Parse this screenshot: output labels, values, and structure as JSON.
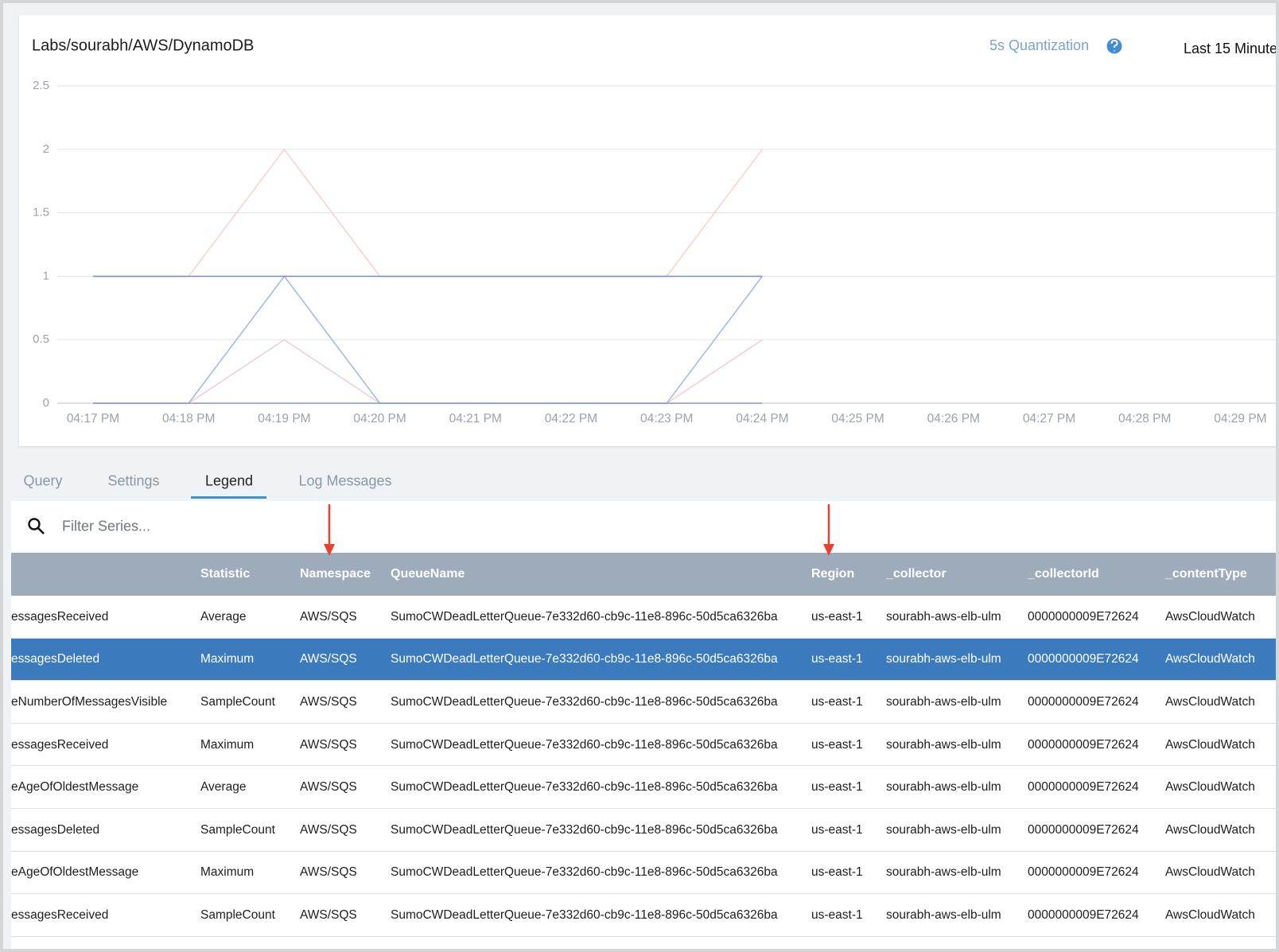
{
  "header": {
    "quantization": "5s Quantization",
    "time_range": "Last 15 Minute"
  },
  "chart_data": {
    "type": "line",
    "title": "Labs/sourabh/AWS/DynamoDB",
    "categories": [
      "04:17 PM",
      "04:18 PM",
      "04:19 PM",
      "04:20 PM",
      "04:21 PM",
      "04:22 PM",
      "04:23 PM",
      "04:24 PM",
      "04:25 PM",
      "04:26 PM",
      "04:27 PM",
      "04:28 PM",
      "04:29 PM"
    ],
    "series": [
      {
        "color": "#f6d3cf",
        "values": [
          1,
          1,
          2,
          1,
          1,
          1,
          1,
          2,
          null,
          null,
          null,
          null,
          null
        ]
      },
      {
        "color": "#eccfe0",
        "values": [
          0,
          0,
          0.5,
          0,
          0,
          0,
          0,
          0.5,
          null,
          null,
          null,
          null,
          null
        ]
      },
      {
        "color": "#a7b9e4",
        "values": [
          0,
          0,
          1,
          0,
          0,
          0,
          0,
          1,
          null,
          null,
          null,
          null,
          null
        ]
      },
      {
        "color": "#7f93c8",
        "values": [
          1,
          1,
          1,
          1,
          1,
          1,
          1,
          1,
          null,
          null,
          null,
          null,
          null
        ]
      },
      {
        "color": "#8d97c6",
        "values": [
          0,
          0,
          0,
          0,
          0,
          0,
          0,
          0,
          null,
          null,
          null,
          null,
          null
        ]
      }
    ],
    "ylim": [
      0,
      2.5
    ],
    "yticks": [
      0,
      0.5,
      1,
      1.5,
      2,
      2.5
    ],
    "grid": true
  },
  "tabs": {
    "items": [
      "Query",
      "Settings",
      "Legend",
      "Log Messages"
    ],
    "active": 2
  },
  "filter": {
    "placeholder": "Filter Series..."
  },
  "table": {
    "columns": [
      null,
      "Statistic",
      "Namespace",
      "QueueName",
      "Region",
      "_collector",
      "_collectorId",
      "_contentType"
    ],
    "selected_row": 1,
    "rows": [
      [
        "essagesReceived",
        "Average",
        "AWS/SQS",
        "SumoCWDeadLetterQueue-7e332d60-cb9c-11e8-896c-50d5ca6326ba",
        "us-east-1",
        "sourabh-aws-elb-ulm",
        "0000000009E72624",
        "AwsCloudWatch"
      ],
      [
        "essagesDeleted",
        "Maximum",
        "AWS/SQS",
        "SumoCWDeadLetterQueue-7e332d60-cb9c-11e8-896c-50d5ca6326ba",
        "us-east-1",
        "sourabh-aws-elb-ulm",
        "0000000009E72624",
        "AwsCloudWatch"
      ],
      [
        "eNumberOfMessagesVisible",
        "SampleCount",
        "AWS/SQS",
        "SumoCWDeadLetterQueue-7e332d60-cb9c-11e8-896c-50d5ca6326ba",
        "us-east-1",
        "sourabh-aws-elb-ulm",
        "0000000009E72624",
        "AwsCloudWatch"
      ],
      [
        "essagesReceived",
        "Maximum",
        "AWS/SQS",
        "SumoCWDeadLetterQueue-7e332d60-cb9c-11e8-896c-50d5ca6326ba",
        "us-east-1",
        "sourabh-aws-elb-ulm",
        "0000000009E72624",
        "AwsCloudWatch"
      ],
      [
        "eAgeOfOldestMessage",
        "Average",
        "AWS/SQS",
        "SumoCWDeadLetterQueue-7e332d60-cb9c-11e8-896c-50d5ca6326ba",
        "us-east-1",
        "sourabh-aws-elb-ulm",
        "0000000009E72624",
        "AwsCloudWatch"
      ],
      [
        "essagesDeleted",
        "SampleCount",
        "AWS/SQS",
        "SumoCWDeadLetterQueue-7e332d60-cb9c-11e8-896c-50d5ca6326ba",
        "us-east-1",
        "sourabh-aws-elb-ulm",
        "0000000009E72624",
        "AwsCloudWatch"
      ],
      [
        "eAgeOfOldestMessage",
        "Maximum",
        "AWS/SQS",
        "SumoCWDeadLetterQueue-7e332d60-cb9c-11e8-896c-50d5ca6326ba",
        "us-east-1",
        "sourabh-aws-elb-ulm",
        "0000000009E72624",
        "AwsCloudWatch"
      ],
      [
        "essagesReceived",
        "SampleCount",
        "AWS/SQS",
        "SumoCWDeadLetterQueue-7e332d60-cb9c-11e8-896c-50d5ca6326ba",
        "us-east-1",
        "sourabh-aws-elb-ulm",
        "0000000009E72624",
        "AwsCloudWatch"
      ]
    ]
  }
}
